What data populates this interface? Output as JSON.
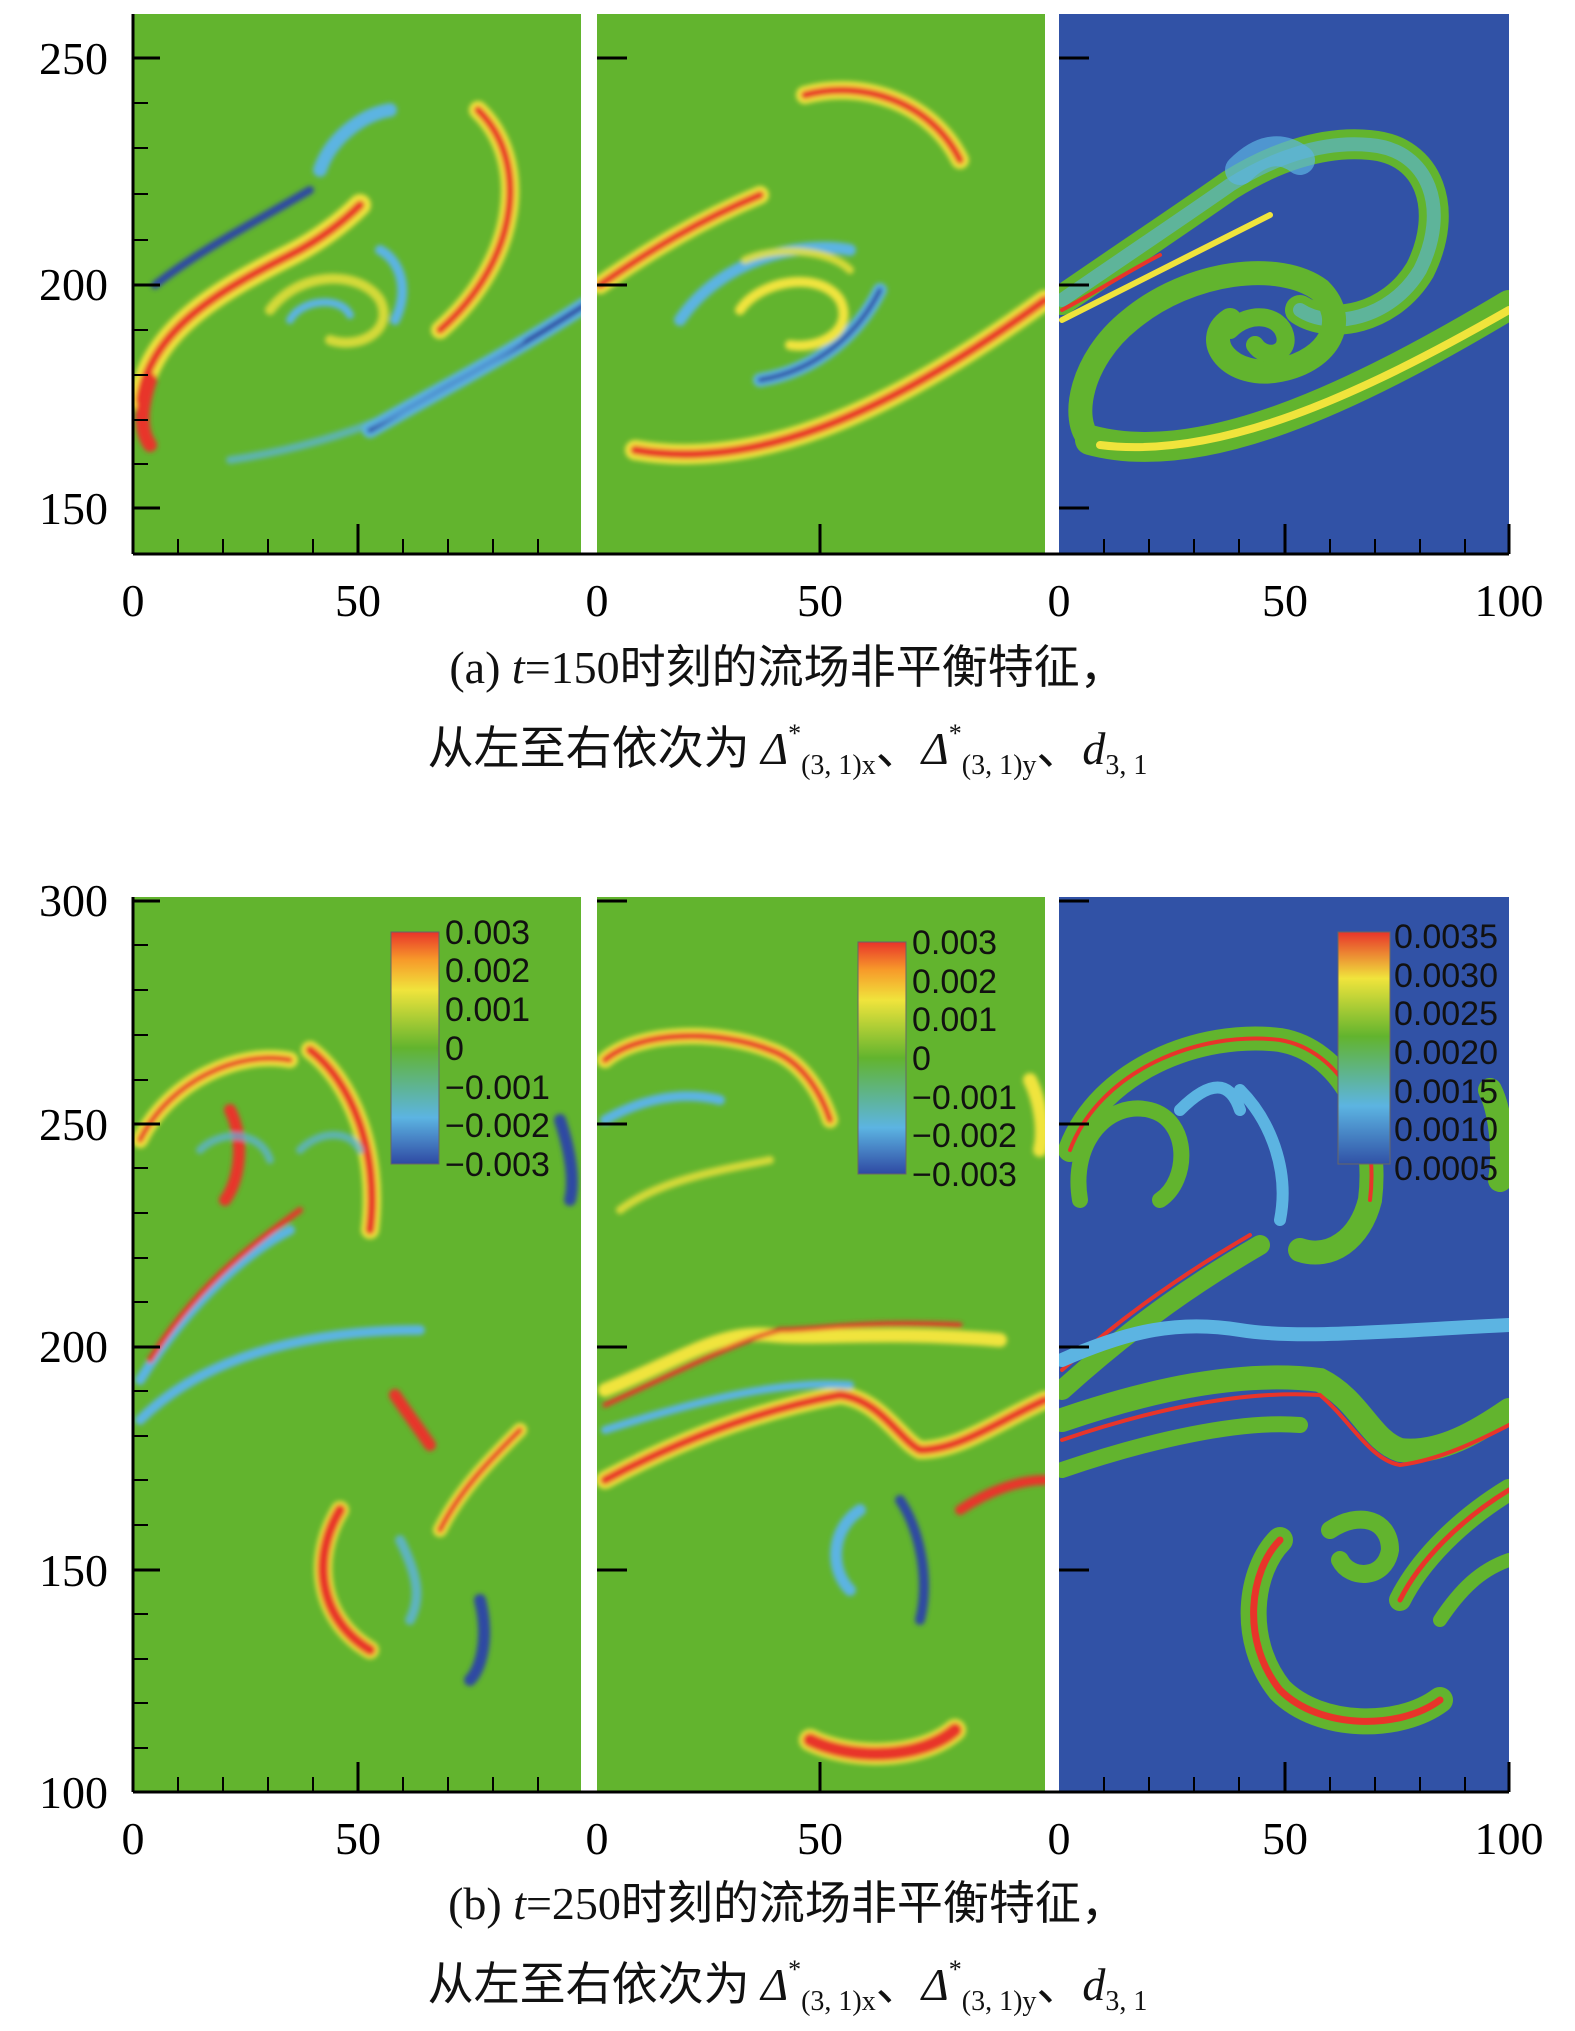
{
  "colors": {
    "field_green": "#62b42e",
    "field_blue": "#3152a6",
    "red": "#e8342a",
    "deep_blue": "#2f49a3",
    "light_blue": "#5cb4e2",
    "yellow": "#f0e43c",
    "orange": "#f79a2a"
  },
  "panel_a": {
    "y_ticks": [
      "250",
      "200",
      "150"
    ],
    "x_ticks": [
      [
        "0",
        "50"
      ],
      [
        "0",
        "50"
      ],
      [
        "0",
        "50",
        "100"
      ]
    ],
    "caption_line1_pre": "(a) ",
    "caption_t": "t",
    "caption_line1_post": "=150时刻的流场非平衡特征，",
    "caption_line2_pre": "从左至右依次为 ",
    "sym1": "Δ",
    "sub1": "(3, 1)x",
    "sym2": "Δ",
    "sub2": "(3, 1)y",
    "star": "*",
    "sep": "、",
    "sym3": "d",
    "sub3": "3, 1"
  },
  "panel_b": {
    "y_ticks": [
      "300",
      "250",
      "200",
      "150",
      "100"
    ],
    "x_ticks": [
      [
        "0",
        "50"
      ],
      [
        "0",
        "50"
      ],
      [
        "0",
        "50",
        "100"
      ]
    ],
    "legend1": [
      "0.003",
      "0.002",
      "0.001",
      "0",
      "−0.001",
      "−0.002",
      "−0.003"
    ],
    "legend2": [
      "0.003",
      "0.002",
      "0.001",
      "0",
      "−0.001",
      "−0.002",
      "−0.003"
    ],
    "legend3": [
      "0.0035",
      "0.0030",
      "0.0025",
      "0.0020",
      "0.0015",
      "0.0010",
      "0.0005"
    ],
    "caption_line1_pre": "(b) ",
    "caption_t": "t",
    "caption_line1_post": "=250时刻的流场非平衡特征，",
    "caption_line2_pre": "从左至右依次为 ",
    "sym1": "Δ",
    "sub1": "(3, 1)x",
    "sym2": "Δ",
    "sub2": "(3, 1)y",
    "star": "*",
    "sep": "、",
    "sym3": "d",
    "sub3": "3, 1"
  }
}
